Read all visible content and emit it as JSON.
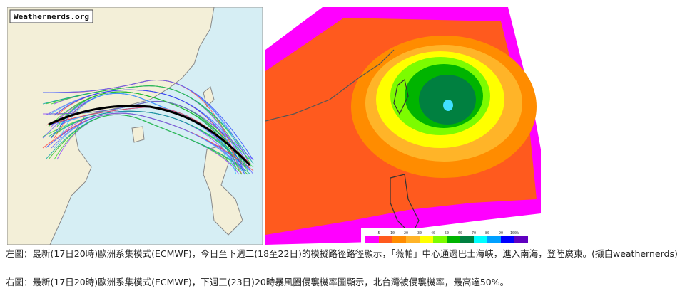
{
  "left_image": {
    "watermark": "Weathernerds.org"
  },
  "right_image": {
    "colorbar_labels": [
      "5",
      "10",
      "20",
      "30",
      "40",
      "50",
      "60",
      "70",
      "80",
      "90",
      "100%"
    ]
  },
  "captions": [
    "左圖：最新(17日20時)歐洲系集模式(ECMWF)，今日至下週二(18至22日)的模擬路徑路徑顯示，「薇帕」中心通過巴士海峽，進入南海，登陸廣東。(擷自weathernerds)",
    "右圖：最新(17日20時)歐洲系集模式(ECMWF)，下週三(23日)20時暴風圈侵襲機率圖顯示，北台灣被侵襲機率，最高達50%。"
  ]
}
